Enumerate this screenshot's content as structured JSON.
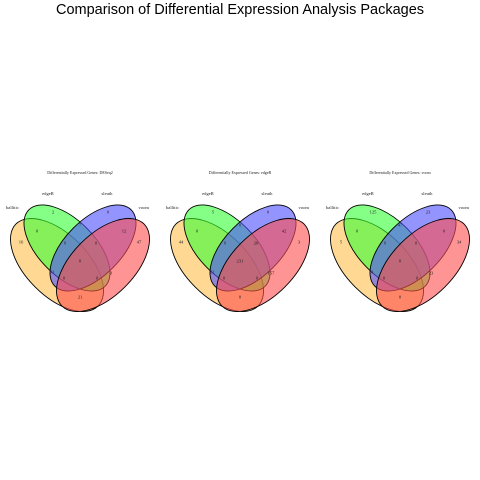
{
  "title": "Comparison of Differential Expression Analysis Packages",
  "colors": {
    "set_a": "#ffc04d",
    "set_b": "#33ff33",
    "set_c": "#4d4dff",
    "set_d": "#ff4d4d",
    "fill_opacity": 0.6
  },
  "diagrams": [
    {
      "title": "Differentially Expressed Genes: DESeq2",
      "labels": [
        "ballitic",
        "edgeR",
        "sleuth",
        "voom"
      ],
      "counts": {
        "A": "16",
        "B": "2",
        "C": "0",
        "D": "47",
        "AB": "0",
        "BC": "7",
        "CD": "12",
        "AD": "21",
        "AC": "91",
        "BD": "0",
        "ABC": "0",
        "BCD": "0",
        "ACD": "0",
        "ABD": "0",
        "ABCD": "0"
      }
    },
    {
      "title": "Differentially Expressed Genes: edgeR",
      "labels": [
        "ballitic",
        "edgeR",
        "sleuth",
        "voom"
      ],
      "counts": {
        "A": "44",
        "B": "5",
        "C": "0",
        "D": "3",
        "AB": "0",
        "BC": "0",
        "CD": "42",
        "AD": "0",
        "AC": "21",
        "BD": "157",
        "ABC": "0",
        "BCD": "20",
        "ACD": "0",
        "ABD": "0",
        "ABCD": "231"
      }
    },
    {
      "title": "Differentially Expressed Genes: voom",
      "labels": [
        "ballitic",
        "edgeR",
        "sleuth",
        "voom"
      ],
      "counts": {
        "A": "5",
        "B": "125",
        "C": "23",
        "D": "34",
        "AB": "0",
        "BC": "47",
        "CD": "0",
        "AD": "0",
        "AC": "0",
        "BD": "23",
        "ABC": "0",
        "BCD": "0",
        "ACD": "0",
        "ABD": "0",
        "ABCD": "0"
      }
    }
  ]
}
